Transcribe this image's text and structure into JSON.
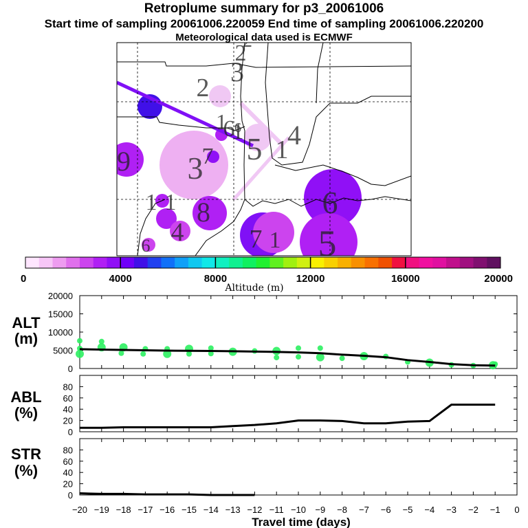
{
  "header": {
    "title": "Retroplume summary for p3_20061006",
    "times": "Start time of sampling 20061006.220059     End time of sampling 20061006.220200",
    "met": "Meteorological data used is ECMWF"
  },
  "colorbar": {
    "ticks": [
      "0",
      "4000",
      "8000",
      "12000",
      "16000",
      "20000"
    ],
    "label": "Altitude (m)",
    "colors": [
      "#ffe6ff",
      "#f7c6f7",
      "#ee9cf0",
      "#e070ec",
      "#cc44ee",
      "#b020f4",
      "#9010f6",
      "#7000f8",
      "#4010e8",
      "#2040f0",
      "#1070f8",
      "#10a0f8",
      "#10c8f0",
      "#10e8e8",
      "#10f0c0",
      "#10f090",
      "#10f060",
      "#20f030",
      "#60f020",
      "#a0f010",
      "#d0f010",
      "#f8f000",
      "#f8d000",
      "#f8b000",
      "#f89000",
      "#f87000",
      "#f05000",
      "#f01040",
      "#f01080",
      "#f010a0",
      "#e010a0",
      "#c0108c",
      "#a01080",
      "#801070",
      "#601060"
    ]
  },
  "map": {
    "plume_labels": [
      "2",
      "3",
      "2",
      "2",
      "1",
      "6",
      "1",
      "5",
      "1",
      "4",
      "9",
      "3",
      "7",
      "1",
      "1",
      "8",
      "4",
      "6",
      "7",
      "1",
      "6",
      "5",
      "6"
    ]
  },
  "chart_data": [
    {
      "type": "line",
      "panel": "ALT",
      "ylabel": "ALT (m)",
      "ylim": [
        0,
        20000
      ],
      "yticks": [
        0,
        5000,
        10000,
        15000,
        20000
      ],
      "ytick_labels": [
        "0",
        "5000",
        "10000",
        "15000",
        "20000"
      ],
      "xlim": [
        -20,
        0
      ],
      "x": [
        -20,
        -19,
        -18,
        -17,
        -16,
        -15,
        -14,
        -13,
        -12,
        -11,
        -10,
        -9,
        -8,
        -7,
        -6,
        -5,
        -4,
        -3,
        -2,
        -1
      ],
      "values": [
        5300,
        5200,
        5100,
        5000,
        4900,
        4850,
        4800,
        4750,
        4650,
        4550,
        4400,
        4200,
        3800,
        3500,
        3100,
        2300,
        1800,
        1200,
        900,
        800
      ],
      "scatter_x": [
        -20,
        -20,
        -20,
        -19,
        -19,
        -18.1,
        -18,
        -17.1,
        -17,
        -16,
        -16,
        -15,
        -15,
        -14,
        -14,
        -13,
        -12,
        -11,
        -11,
        -10,
        -10,
        -9,
        -9,
        -8,
        -7,
        -6,
        -5,
        -4,
        -3,
        -2,
        -1.1,
        -1
      ],
      "scatter_y": [
        4000,
        5500,
        7600,
        5800,
        7400,
        4200,
        5800,
        4000,
        5400,
        4000,
        5400,
        4000,
        5400,
        4100,
        5600,
        4600,
        4800,
        3000,
        4800,
        3200,
        5600,
        3100,
        5600,
        2800,
        3400,
        3300,
        1800,
        1600,
        1000,
        800,
        900,
        1200
      ]
    },
    {
      "type": "line",
      "panel": "ABL",
      "ylabel": "ABL (%)",
      "ylim": [
        0,
        100
      ],
      "yticks": [
        0,
        20,
        40,
        60,
        80
      ],
      "ytick_labels": [
        "0",
        "20",
        "40",
        "60",
        "80"
      ],
      "x": [
        -20,
        -19,
        -18,
        -17,
        -16,
        -15,
        -14,
        -13,
        -12,
        -11,
        -10,
        -9,
        -8,
        -7,
        -6,
        -5,
        -4,
        -3,
        -2,
        -1
      ],
      "values": [
        7,
        7,
        8,
        8,
        8,
        8,
        8,
        10,
        12,
        15,
        20,
        20,
        19,
        15,
        15,
        18,
        19,
        48,
        48,
        48
      ]
    },
    {
      "type": "line",
      "panel": "STR",
      "ylabel": "STR (%)",
      "ylim": [
        0,
        100
      ],
      "yticks": [
        0,
        20,
        40,
        60,
        80
      ],
      "ytick_labels": [
        "0",
        "20",
        "40",
        "60",
        "80"
      ],
      "x": [
        -20,
        -19,
        -18,
        -17,
        -16,
        -15,
        -14,
        -13,
        -12
      ],
      "values": [
        3,
        2,
        2,
        1,
        1,
        1,
        0,
        0,
        0
      ]
    }
  ],
  "xaxis": {
    "ticks": [
      -20,
      -19,
      -18,
      -17,
      -16,
      -15,
      -14,
      -13,
      -12,
      -11,
      -10,
      -9,
      -8,
      -7,
      -6,
      -5,
      -4,
      -3,
      -2,
      -1,
      0
    ],
    "tick_labels": [
      "−20",
      "−19",
      "−18",
      "−17",
      "−16",
      "−15",
      "−14",
      "−13",
      "−12",
      "−11",
      "−10",
      "−9",
      "−8",
      "−7",
      "−6",
      "−5",
      "−4",
      "−3",
      "−2",
      "−1",
      "0"
    ],
    "label": "Travel time (days)"
  },
  "panel_labels": {
    "alt_name": "ALT",
    "alt_unit": "(m)",
    "abl_name": "ABL",
    "abl_unit": "(%)",
    "str_name": "STR",
    "str_unit": "(%)"
  }
}
